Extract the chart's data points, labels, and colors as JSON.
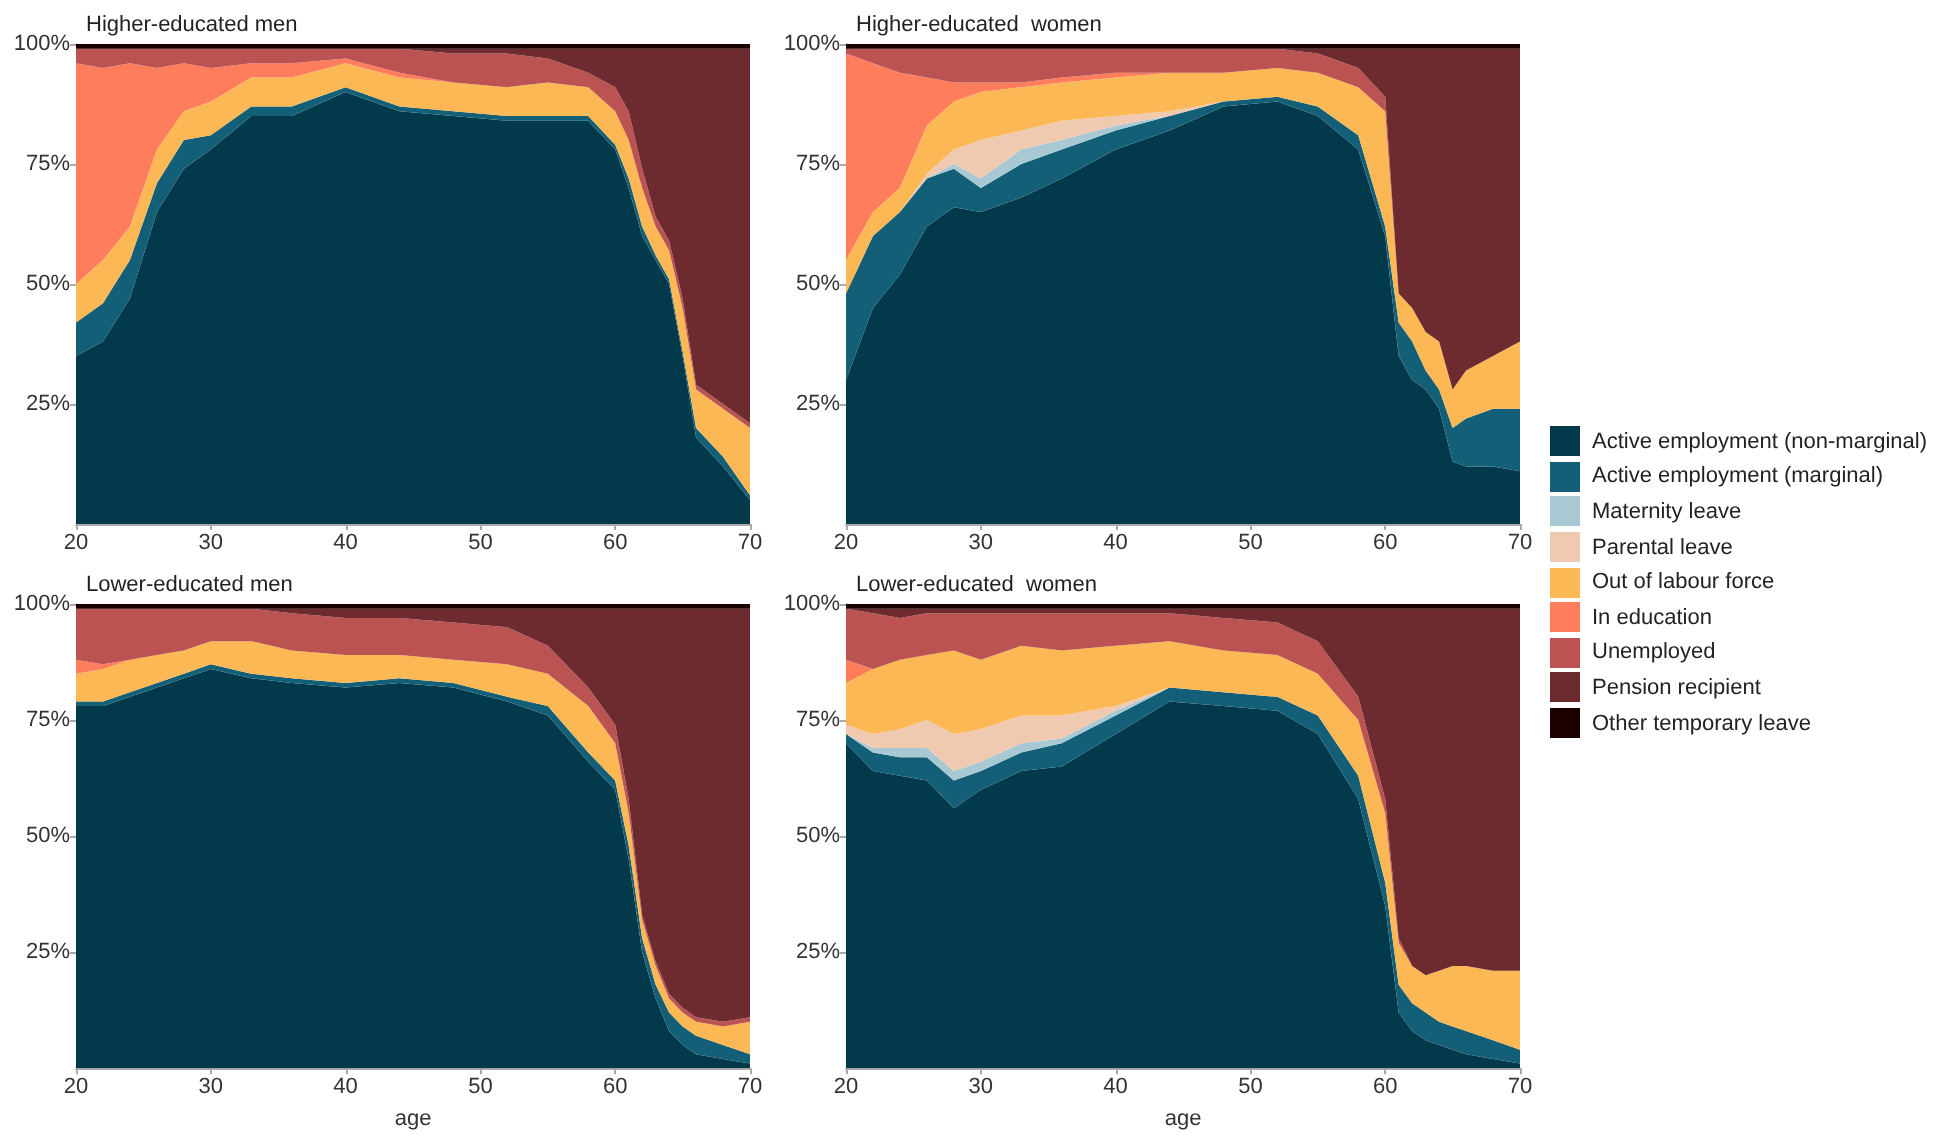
{
  "chart_data": [
    {
      "type": "area",
      "title": "Higher-educated men",
      "stacked": true,
      "legend": "right",
      "x": [
        20,
        22,
        24,
        26,
        28,
        30,
        33,
        36,
        40,
        44,
        48,
        52,
        55,
        58,
        60,
        61,
        62,
        63,
        64,
        65,
        66,
        68,
        70
      ],
      "xlim": [
        20,
        70
      ],
      "xticks": [
        20,
        30,
        40,
        50,
        60,
        70
      ],
      "ylim": [
        0,
        100
      ],
      "yticks": [
        {
          "value": 25,
          "label": "25%"
        },
        {
          "value": 50,
          "label": "50%"
        },
        {
          "value": 75,
          "label": "75%"
        },
        {
          "value": 100,
          "label": "100%"
        }
      ],
      "grid": false,
      "series": [
        {
          "name": "Active employment (non-marginal)",
          "color": "#033a4b",
          "values": [
            35,
            38,
            47,
            65,
            74,
            78,
            85,
            85,
            90,
            86,
            85,
            84,
            84,
            84,
            78,
            70,
            60,
            55,
            50,
            35,
            18,
            12,
            5
          ]
        },
        {
          "name": "Active employment (marginal)",
          "color": "#135f77",
          "values": [
            7,
            8,
            8,
            6,
            6,
            3,
            2,
            2,
            1,
            1,
            1,
            1,
            1,
            1,
            1,
            2,
            2,
            1,
            1,
            1,
            2,
            2,
            1
          ]
        },
        {
          "name": "Out of labour force",
          "color": "#fbb854",
          "values": [
            8,
            9,
            7,
            7,
            6,
            7,
            6,
            6,
            5,
            6,
            6,
            6,
            7,
            6,
            7,
            8,
            8,
            6,
            6,
            9,
            8,
            10,
            14
          ]
        },
        {
          "name": "In education",
          "color": "#fd7d5c",
          "values": [
            46,
            40,
            34,
            17,
            10,
            7,
            3,
            3,
            1,
            1,
            0,
            null,
            null,
            null,
            null,
            null,
            null,
            null,
            null,
            null,
            null,
            null,
            null
          ]
        },
        {
          "name": "Unemployed",
          "color": "#bb5353",
          "values": [
            3,
            4,
            3,
            4,
            3,
            4,
            3,
            3,
            2,
            5,
            6,
            7,
            5,
            3,
            5,
            6,
            4,
            2,
            2,
            2,
            1,
            1,
            1
          ]
        },
        {
          "name": "Pension recipient",
          "color": "#6e2b2f",
          "values": [
            null,
            null,
            null,
            null,
            null,
            null,
            null,
            null,
            null,
            0,
            1,
            1,
            2,
            5,
            8,
            13,
            25,
            35,
            40,
            52,
            70,
            74,
            78
          ]
        },
        {
          "name": "Other temporary leave",
          "color": "#1c0000",
          "values": [
            1,
            1,
            1,
            1,
            1,
            1,
            1,
            1,
            1,
            1,
            1,
            1,
            1,
            1,
            1,
            1,
            1,
            1,
            1,
            1,
            1,
            1,
            1
          ]
        }
      ]
    },
    {
      "type": "area",
      "title": "Higher-educated  women",
      "stacked": true,
      "legend": "right",
      "x": [
        20,
        22,
        24,
        26,
        28,
        30,
        33,
        36,
        40,
        44,
        48,
        52,
        55,
        58,
        60,
        61,
        62,
        63,
        64,
        65,
        66,
        68,
        70
      ],
      "xlim": [
        20,
        70
      ],
      "xticks": [
        20,
        30,
        40,
        50,
        60,
        70
      ],
      "ylim": [
        0,
        100
      ],
      "yticks": [
        {
          "value": 25,
          "label": "25%"
        },
        {
          "value": 50,
          "label": "50%"
        },
        {
          "value": 75,
          "label": "75%"
        },
        {
          "value": 100,
          "label": "100%"
        }
      ],
      "grid": false,
      "series": [
        {
          "name": "Active employment (non-marginal)",
          "color": "#033a4b",
          "values": [
            30,
            45,
            52,
            62,
            66,
            65,
            68,
            72,
            78,
            82,
            87,
            88,
            85,
            78,
            60,
            35,
            30,
            28,
            24,
            13,
            12,
            12,
            11
          ]
        },
        {
          "name": "Active employment (marginal)",
          "color": "#135f77",
          "values": [
            18,
            15,
            13,
            10,
            8,
            5,
            7,
            6,
            4,
            3,
            1,
            1,
            2,
            3,
            2,
            7,
            8,
            4,
            4,
            7,
            10,
            12,
            13
          ]
        },
        {
          "name": "Maternity leave",
          "color": "#a8c8d4",
          "values": [
            null,
            null,
            null,
            0,
            1,
            2,
            3,
            2,
            1,
            0,
            null,
            null,
            null,
            null,
            null,
            null,
            null,
            null,
            null,
            null,
            null,
            null,
            null
          ]
        },
        {
          "name": "Parental leave",
          "color": "#efc9b0",
          "values": [
            null,
            null,
            0,
            1,
            3,
            8,
            4,
            4,
            2,
            1,
            0,
            null,
            null,
            null,
            null,
            null,
            null,
            null,
            null,
            null,
            null,
            null,
            null
          ]
        },
        {
          "name": "Out of labour force",
          "color": "#fbb854",
          "values": [
            7,
            5,
            5,
            10,
            10,
            10,
            9,
            8,
            8,
            8,
            6,
            6,
            7,
            10,
            24,
            6,
            7,
            8,
            10,
            8,
            10,
            11,
            14
          ]
        },
        {
          "name": "In education",
          "color": "#fd7d5c",
          "values": [
            43,
            31,
            24,
            10,
            4,
            2,
            1,
            1,
            1,
            0,
            null,
            null,
            null,
            null,
            null,
            null,
            null,
            null,
            null,
            null,
            null,
            null,
            null
          ]
        },
        {
          "name": "Unemployed",
          "color": "#bb5353",
          "values": [
            1,
            3,
            5,
            6,
            7,
            7,
            7,
            6,
            5,
            5,
            5,
            4,
            4,
            4,
            3,
            0,
            null,
            null,
            null,
            null,
            null,
            null,
            null
          ]
        },
        {
          "name": "Pension recipient",
          "color": "#6e2b2f",
          "values": [
            null,
            null,
            null,
            null,
            null,
            null,
            null,
            null,
            null,
            null,
            null,
            0,
            1,
            4,
            10,
            51,
            54,
            59,
            61,
            71,
            67,
            64,
            61
          ]
        },
        {
          "name": "Other temporary leave",
          "color": "#1c0000",
          "values": [
            1,
            1,
            1,
            1,
            1,
            1,
            1,
            1,
            1,
            1,
            1,
            1,
            1,
            1,
            1,
            1,
            1,
            1,
            1,
            1,
            1,
            1,
            1
          ]
        }
      ]
    },
    {
      "type": "area",
      "title": "Lower-educated men",
      "xlabel": "age",
      "stacked": true,
      "legend": "right",
      "x": [
        20,
        22,
        24,
        26,
        28,
        30,
        33,
        36,
        40,
        44,
        48,
        52,
        55,
        58,
        60,
        61,
        62,
        63,
        64,
        65,
        66,
        68,
        70
      ],
      "xlim": [
        20,
        70
      ],
      "xticks": [
        20,
        30,
        40,
        50,
        60,
        70
      ],
      "ylim": [
        0,
        100
      ],
      "yticks": [
        {
          "value": 25,
          "label": "25%"
        },
        {
          "value": 50,
          "label": "50%"
        },
        {
          "value": 75,
          "label": "75%"
        },
        {
          "value": 100,
          "label": "100%"
        }
      ],
      "grid": false,
      "series": [
        {
          "name": "Active employment (non-marginal)",
          "color": "#033a4b",
          "values": [
            78,
            78,
            80,
            82,
            84,
            86,
            84,
            83,
            82,
            83,
            82,
            79,
            76,
            66,
            60,
            45,
            25,
            15,
            8,
            5,
            3,
            2,
            1
          ]
        },
        {
          "name": "Active employment (marginal)",
          "color": "#135f77",
          "values": [
            1,
            1,
            1,
            1,
            1,
            1,
            1,
            1,
            1,
            1,
            1,
            1,
            2,
            2,
            2,
            3,
            3,
            3,
            4,
            4,
            4,
            3,
            2
          ]
        },
        {
          "name": "Out of labour force",
          "color": "#fbb854",
          "values": [
            6,
            7,
            7,
            6,
            5,
            5,
            7,
            6,
            6,
            5,
            5,
            7,
            7,
            10,
            8,
            7,
            4,
            4,
            3,
            3,
            3,
            4,
            7
          ]
        },
        {
          "name": "In education",
          "color": "#fd7d5c",
          "values": [
            3,
            1,
            0,
            null,
            null,
            null,
            null,
            null,
            null,
            null,
            null,
            null,
            null,
            null,
            null,
            null,
            null,
            null,
            null,
            null,
            null,
            null,
            null
          ]
        },
        {
          "name": "Unemployed",
          "color": "#bb5353",
          "values": [
            11,
            12,
            11,
            10,
            9,
            7,
            7,
            8,
            8,
            8,
            8,
            8,
            6,
            4,
            4,
            3,
            1,
            1,
            1,
            1,
            1,
            1,
            1
          ]
        },
        {
          "name": "Pension recipient",
          "color": "#6e2b2f",
          "values": [
            null,
            null,
            null,
            null,
            null,
            null,
            0,
            1,
            2,
            2,
            3,
            4,
            8,
            17,
            25,
            41,
            66,
            76,
            83,
            86,
            88,
            89,
            88
          ]
        },
        {
          "name": "Other temporary leave",
          "color": "#1c0000",
          "values": [
            1,
            1,
            1,
            1,
            1,
            1,
            1,
            1,
            1,
            1,
            1,
            1,
            1,
            1,
            1,
            1,
            1,
            1,
            1,
            1,
            1,
            1,
            1
          ]
        }
      ]
    },
    {
      "type": "area",
      "title": "Lower-educated  women",
      "xlabel": "age",
      "stacked": true,
      "legend": "right",
      "x": [
        20,
        22,
        24,
        26,
        28,
        30,
        33,
        36,
        40,
        44,
        48,
        52,
        55,
        58,
        60,
        61,
        62,
        63,
        64,
        65,
        66,
        68,
        70
      ],
      "xlim": [
        20,
        70
      ],
      "xticks": [
        20,
        30,
        40,
        50,
        60,
        70
      ],
      "ylim": [
        0,
        100
      ],
      "yticks": [
        {
          "value": 25,
          "label": "25%"
        },
        {
          "value": 50,
          "label": "50%"
        },
        {
          "value": 75,
          "label": "75%"
        },
        {
          "value": 100,
          "label": "100%"
        }
      ],
      "grid": false,
      "series": [
        {
          "name": "Active employment (non-marginal)",
          "color": "#033a4b",
          "values": [
            70,
            64,
            63,
            62,
            56,
            60,
            64,
            65,
            72,
            79,
            78,
            77,
            72,
            58,
            35,
            12,
            8,
            6,
            5,
            4,
            3,
            2,
            1
          ]
        },
        {
          "name": "Active employment (marginal)",
          "color": "#135f77",
          "values": [
            2,
            4,
            4,
            5,
            6,
            4,
            4,
            5,
            4,
            3,
            3,
            3,
            4,
            5,
            5,
            6,
            6,
            6,
            5,
            5,
            5,
            4,
            3
          ]
        },
        {
          "name": "Maternity leave",
          "color": "#a8c8d4",
          "values": [
            0,
            1,
            2,
            2,
            2,
            2,
            2,
            1,
            1,
            0,
            null,
            null,
            null,
            null,
            null,
            null,
            null,
            null,
            null,
            null,
            null,
            null,
            null
          ]
        },
        {
          "name": "Parental leave",
          "color": "#efc9b0",
          "values": [
            2,
            3,
            4,
            6,
            8,
            7,
            6,
            5,
            1,
            0,
            null,
            null,
            null,
            null,
            null,
            null,
            null,
            null,
            null,
            null,
            null,
            null,
            null
          ]
        },
        {
          "name": "Out of labour force",
          "color": "#fbb854",
          "values": [
            9,
            14,
            15,
            14,
            18,
            15,
            15,
            14,
            13,
            10,
            9,
            9,
            9,
            12,
            15,
            9,
            8,
            8,
            11,
            13,
            14,
            15,
            17
          ]
        },
        {
          "name": "In education",
          "color": "#fd7d5c",
          "values": [
            5,
            0,
            null,
            null,
            null,
            null,
            null,
            null,
            null,
            null,
            null,
            null,
            null,
            null,
            null,
            null,
            null,
            null,
            null,
            null,
            null,
            null,
            null
          ]
        },
        {
          "name": "Unemployed",
          "color": "#bb5353",
          "values": [
            11,
            12,
            9,
            9,
            8,
            10,
            7,
            8,
            7,
            6,
            7,
            7,
            7,
            5,
            3,
            1,
            0,
            null,
            null,
            null,
            null,
            null,
            null
          ]
        },
        {
          "name": "Pension recipient",
          "color": "#6e2b2f",
          "values": [
            0,
            1,
            2,
            1,
            1,
            1,
            1,
            1,
            1,
            1,
            2,
            3,
            7,
            19,
            41,
            71,
            77,
            79,
            78,
            77,
            77,
            78,
            78
          ]
        },
        {
          "name": "Other temporary leave",
          "color": "#1c0000",
          "values": [
            1,
            1,
            1,
            1,
            1,
            1,
            1,
            1,
            1,
            1,
            1,
            1,
            1,
            1,
            1,
            1,
            1,
            1,
            1,
            1,
            1,
            1,
            1
          ]
        }
      ]
    }
  ]
}
